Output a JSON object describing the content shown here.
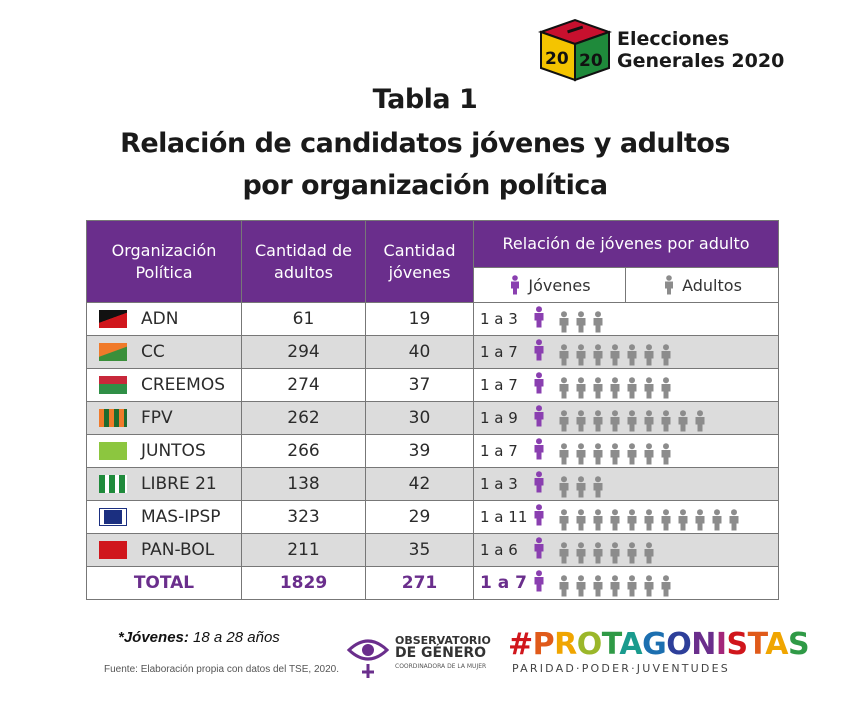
{
  "logo": {
    "cube_text": "2020",
    "line1": "Elecciones",
    "line2": "Generales 2020"
  },
  "title": {
    "line1": "Tabla 1",
    "line2": "Relación de candidatos jóvenes y adultos",
    "line3": "por organización política"
  },
  "table": {
    "headers": {
      "organizacion": "Organización Política",
      "adultos": "Cantidad de adultos",
      "jovenes": "Cantidad jóvenes",
      "relacion": "Relación de jóvenes por adulto"
    },
    "legend": {
      "young": "Jóvenes",
      "adult": "Adultos",
      "young_color": "#8a3fb0",
      "adult_color": "#8c8c8c"
    },
    "rows": [
      {
        "org": "ADN",
        "adultos": "61",
        "jovenes": "19",
        "ratio": "1 a 3",
        "adult_icons": 3,
        "flag": "adn"
      },
      {
        "org": "CC",
        "adultos": "294",
        "jovenes": "40",
        "ratio": "1 a 7",
        "adult_icons": 7,
        "flag": "cc"
      },
      {
        "org": "CREEMOS",
        "adultos": "274",
        "jovenes": "37",
        "ratio": "1 a 7",
        "adult_icons": 7,
        "flag": "creemos"
      },
      {
        "org": "FPV",
        "adultos": "262",
        "jovenes": "30",
        "ratio": "1 a 9",
        "adult_icons": 9,
        "flag": "fpv"
      },
      {
        "org": "JUNTOS",
        "adultos": "266",
        "jovenes": "39",
        "ratio": "1 a 7",
        "adult_icons": 7,
        "flag": "juntos"
      },
      {
        "org": "LIBRE 21",
        "adultos": "138",
        "jovenes": "42",
        "ratio": "1 a 3",
        "adult_icons": 3,
        "flag": "libre21"
      },
      {
        "org": "MAS-IPSP",
        "adultos": "323",
        "jovenes": "29",
        "ratio": "1 a 11",
        "adult_icons": 11,
        "flag": "mas"
      },
      {
        "org": "PAN-BOL",
        "adultos": "211",
        "jovenes": "35",
        "ratio": "1 a 6",
        "adult_icons": 6,
        "flag": "panbol"
      }
    ],
    "total": {
      "org": "TOTAL",
      "adultos": "1829",
      "jovenes": "271",
      "ratio": "1 a 7",
      "adult_icons": 7
    }
  },
  "footer": {
    "note_label": "*Jóvenes:",
    "note_value": "18 a 28 años",
    "source": "Fuente: Elaboración propia con datos del TSE, 2020.",
    "observatorio": {
      "line1": "OBSERVATORIO",
      "line2": "DE GÉNERO",
      "line3": "COORDINADORA DE LA MUJER"
    },
    "protagonistas": {
      "title": "#PROTAGONISTAS",
      "subtitle": "PARIDAD·PODER·JUVENTUDES"
    }
  }
}
